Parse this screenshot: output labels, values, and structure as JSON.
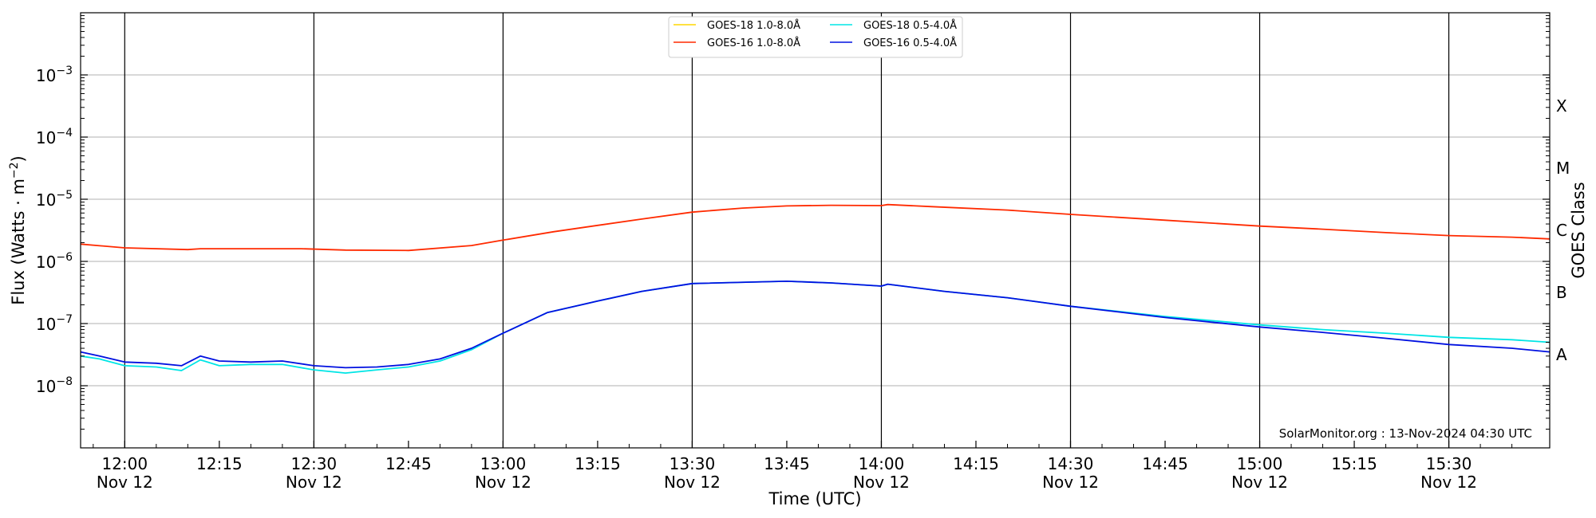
{
  "chart_data": {
    "type": "line",
    "xlabel": "Time (UTC)",
    "ylabel": "Flux (Watts · m",
    "ylabel_sup": "−2",
    "ylabel_close": ")",
    "y2label": "GOES Class",
    "yscale": "log",
    "ylim": [
      1e-09,
      0.01
    ],
    "xlim": [
      "11:53",
      "15:46"
    ],
    "y_ticks": [
      {
        "value": 1e-08,
        "base": "10",
        "exp": "−8"
      },
      {
        "value": 1e-07,
        "base": "10",
        "exp": "−7"
      },
      {
        "value": 1e-06,
        "base": "10",
        "exp": "−6"
      },
      {
        "value": 1e-05,
        "base": "10",
        "exp": "−5"
      },
      {
        "value": 0.0001,
        "base": "10",
        "exp": "−4"
      },
      {
        "value": 0.001,
        "base": "10",
        "exp": "−3"
      }
    ],
    "goes_classes": [
      {
        "label": "A",
        "value": 3.16e-08
      },
      {
        "label": "B",
        "value": 3.16e-07
      },
      {
        "label": "C",
        "value": 3.16e-06
      },
      {
        "label": "M",
        "value": 3.16e-05
      },
      {
        "label": "X",
        "value": 0.000316
      }
    ],
    "x_ticks": [
      {
        "time": "12:00",
        "date": "Nov 12"
      },
      {
        "time": "12:15",
        "date": ""
      },
      {
        "time": "12:30",
        "date": "Nov 12"
      },
      {
        "time": "12:45",
        "date": ""
      },
      {
        "time": "13:00",
        "date": "Nov 12"
      },
      {
        "time": "13:15",
        "date": ""
      },
      {
        "time": "13:30",
        "date": "Nov 12"
      },
      {
        "time": "13:45",
        "date": ""
      },
      {
        "time": "14:00",
        "date": "Nov 12"
      },
      {
        "time": "14:15",
        "date": ""
      },
      {
        "time": "14:30",
        "date": "Nov 12"
      },
      {
        "time": "14:45",
        "date": ""
      },
      {
        "time": "15:00",
        "date": "Nov 12"
      },
      {
        "time": "15:15",
        "date": ""
      },
      {
        "time": "15:30",
        "date": "Nov 12"
      }
    ],
    "vlines": [
      "12:00",
      "12:30",
      "13:00",
      "13:30",
      "14:00",
      "14:30",
      "15:00",
      "15:30"
    ],
    "legend": {
      "placement": "top-center",
      "columns": 2
    },
    "series": [
      {
        "name": "GOES-18 1.0-8.0Å",
        "color": "#ffd700",
        "points": []
      },
      {
        "name": "GOES-16 1.0-8.0Å",
        "color": "#ff2a00",
        "points": [
          [
            "11:53",
            1.9e-06
          ],
          [
            "12:00",
            1.65e-06
          ],
          [
            "12:10",
            1.55e-06
          ],
          [
            "12:12",
            1.6e-06
          ],
          [
            "12:20",
            1.6e-06
          ],
          [
            "12:28",
            1.6e-06
          ],
          [
            "12:35",
            1.52e-06
          ],
          [
            "12:45",
            1.5e-06
          ],
          [
            "12:55",
            1.8e-06
          ],
          [
            "13:00",
            2.2e-06
          ],
          [
            "13:08",
            3e-06
          ],
          [
            "13:15",
            3.8e-06
          ],
          [
            "13:22",
            4.8e-06
          ],
          [
            "13:30",
            6.2e-06
          ],
          [
            "13:38",
            7.2e-06
          ],
          [
            "13:45",
            7.8e-06
          ],
          [
            "13:52",
            8e-06
          ],
          [
            "14:00",
            7.9e-06
          ],
          [
            "14:01",
            8.2e-06
          ],
          [
            "14:08",
            7.6e-06
          ],
          [
            "14:20",
            6.7e-06
          ],
          [
            "14:30",
            5.7e-06
          ],
          [
            "14:45",
            4.6e-06
          ],
          [
            "15:00",
            3.7e-06
          ],
          [
            "15:10",
            3.3e-06
          ],
          [
            "15:20",
            2.9e-06
          ],
          [
            "15:30",
            2.6e-06
          ],
          [
            "15:40",
            2.45e-06
          ],
          [
            "15:46",
            2.3e-06
          ]
        ]
      },
      {
        "name": "GOES-18 0.5-4.0Å",
        "color": "#00e5e5",
        "points": [
          [
            "11:53",
            3e-08
          ],
          [
            "11:56",
            2.7e-08
          ],
          [
            "12:00",
            2.1e-08
          ],
          [
            "12:05",
            2e-08
          ],
          [
            "12:09",
            1.75e-08
          ],
          [
            "12:12",
            2.6e-08
          ],
          [
            "12:15",
            2.1e-08
          ],
          [
            "12:20",
            2.2e-08
          ],
          [
            "12:25",
            2.2e-08
          ],
          [
            "12:30",
            1.8e-08
          ],
          [
            "12:35",
            1.6e-08
          ],
          [
            "12:40",
            1.8e-08
          ],
          [
            "12:45",
            2e-08
          ],
          [
            "12:50",
            2.5e-08
          ],
          [
            "12:55",
            3.8e-08
          ],
          [
            "13:00",
            7e-08
          ],
          [
            "13:07",
            1.5e-07
          ],
          [
            "13:15",
            2.3e-07
          ],
          [
            "13:22",
            3.3e-07
          ],
          [
            "13:30",
            4.4e-07
          ],
          [
            "13:45",
            4.8e-07
          ],
          [
            "13:52",
            4.5e-07
          ],
          [
            "14:00",
            4e-07
          ],
          [
            "14:01",
            4.3e-07
          ],
          [
            "14:10",
            3.3e-07
          ],
          [
            "14:20",
            2.6e-07
          ],
          [
            "14:30",
            1.9e-07
          ],
          [
            "14:45",
            1.3e-07
          ],
          [
            "15:00",
            9.5e-08
          ],
          [
            "15:10",
            8e-08
          ],
          [
            "15:20",
            7e-08
          ],
          [
            "15:30",
            6e-08
          ],
          [
            "15:40",
            5.5e-08
          ],
          [
            "15:46",
            5e-08
          ]
        ]
      },
      {
        "name": "GOES-16 0.5-4.0Å",
        "color": "#0010e0",
        "points": [
          [
            "11:53",
            3.5e-08
          ],
          [
            "11:56",
            3e-08
          ],
          [
            "12:00",
            2.4e-08
          ],
          [
            "12:05",
            2.3e-08
          ],
          [
            "12:09",
            2.1e-08
          ],
          [
            "12:12",
            3e-08
          ],
          [
            "12:15",
            2.5e-08
          ],
          [
            "12:20",
            2.4e-08
          ],
          [
            "12:25",
            2.5e-08
          ],
          [
            "12:30",
            2.1e-08
          ],
          [
            "12:35",
            1.95e-08
          ],
          [
            "12:40",
            2e-08
          ],
          [
            "12:45",
            2.2e-08
          ],
          [
            "12:50",
            2.7e-08
          ],
          [
            "12:55",
            4e-08
          ],
          [
            "13:00",
            7e-08
          ],
          [
            "13:07",
            1.5e-07
          ],
          [
            "13:15",
            2.3e-07
          ],
          [
            "13:22",
            3.3e-07
          ],
          [
            "13:30",
            4.4e-07
          ],
          [
            "13:45",
            4.8e-07
          ],
          [
            "13:52",
            4.5e-07
          ],
          [
            "14:00",
            4e-07
          ],
          [
            "14:01",
            4.3e-07
          ],
          [
            "14:10",
            3.3e-07
          ],
          [
            "14:20",
            2.6e-07
          ],
          [
            "14:30",
            1.9e-07
          ],
          [
            "14:45",
            1.25e-07
          ],
          [
            "15:00",
            8.8e-08
          ],
          [
            "15:10",
            7.2e-08
          ],
          [
            "15:20",
            5.8e-08
          ],
          [
            "15:30",
            4.6e-08
          ],
          [
            "15:40",
            4e-08
          ],
          [
            "15:46",
            3.5e-08
          ]
        ]
      }
    ],
    "credit": "SolarMonitor.org : 13-Nov-2024 04:30 UTC"
  }
}
